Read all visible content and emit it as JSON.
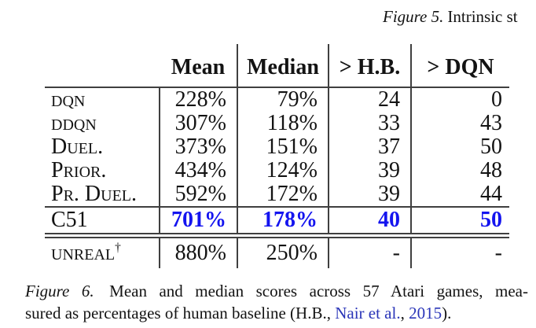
{
  "colors": {
    "c51-blue": "#1414ef",
    "link-blue": "#2a35b8",
    "rule": "#3f3f3f"
  },
  "top_caption": {
    "figure_label": "Figure 5.",
    "text": "Intrinsic st"
  },
  "table": {
    "headers": [
      "Mean",
      "Median",
      "> H.B.",
      "> DQN"
    ],
    "rows": [
      {
        "label": "dqn",
        "mean": "228%",
        "median": "79%",
        "gt_hb": "24",
        "gt_dqn": "0"
      },
      {
        "label": "ddqn",
        "mean": "307%",
        "median": "118%",
        "gt_hb": "33",
        "gt_dqn": "43"
      },
      {
        "label": "Duel.",
        "mean": "373%",
        "median": "151%",
        "gt_hb": "37",
        "gt_dqn": "50"
      },
      {
        "label": "Prior.",
        "mean": "434%",
        "median": "124%",
        "gt_hb": "39",
        "gt_dqn": "48"
      },
      {
        "label": "Pr. Duel.",
        "mean": "592%",
        "median": "172%",
        "gt_hb": "39",
        "gt_dqn": "44"
      },
      {
        "label": "C51",
        "mean": "701%",
        "median": "178%",
        "gt_hb": "40",
        "gt_dqn": "50"
      },
      {
        "label": "unreal",
        "sup": "†",
        "mean": "880%",
        "median": "250%",
        "gt_hb": "-",
        "gt_dqn": "-"
      }
    ]
  },
  "bottom_caption": {
    "figure_label": "Figure 6.",
    "line1_text": "Mean and median scores across 57 Atari games, mea-",
    "line2_prefix": "sured as percentages of human baseline (H.B., ",
    "citation_name": "Nair et al.",
    "citation_sep": ", ",
    "citation_year": "2015",
    "suffix": ")."
  }
}
